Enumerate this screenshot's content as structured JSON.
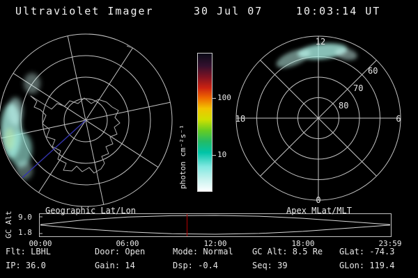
{
  "title": {
    "instrument": "Ultraviolet Imager",
    "date": "30 Jul 07",
    "time": "10:03:14 UT"
  },
  "colors": {
    "background": "#000000",
    "text": "#e8e8e8",
    "grid": "#c4c4c4",
    "emission_cyan": "#a9efe3",
    "orbit_track_blue": "#3434ad",
    "time_marker_red": "#b40000"
  },
  "left_plot": {
    "caption": "Geographic Lat/Lon"
  },
  "right_plot": {
    "caption": "Apex MLat/MLT",
    "mlt_top": "12",
    "mlt_left": "18",
    "mlt_right": "6",
    "mlt_bottom": "0",
    "lat_rings": [
      "60",
      "70",
      "80"
    ]
  },
  "colorbar": {
    "label": "photon cm⁻²s⁻¹",
    "scale": "log",
    "ticks": [
      {
        "value": "100",
        "pos": 0.33
      },
      {
        "value": "10",
        "pos": 0.74
      }
    ],
    "stops": [
      [
        0.0,
        "#0a0a16"
      ],
      [
        0.09,
        "#33102e"
      ],
      [
        0.17,
        "#7f1222"
      ],
      [
        0.25,
        "#cc2211"
      ],
      [
        0.32,
        "#ee6600"
      ],
      [
        0.4,
        "#f2c400"
      ],
      [
        0.48,
        "#cfe000"
      ],
      [
        0.56,
        "#66cc22"
      ],
      [
        0.64,
        "#22bb66"
      ],
      [
        0.72,
        "#00c4a8"
      ],
      [
        0.82,
        "#7fe8e0"
      ],
      [
        0.91,
        "#c5f2ee"
      ],
      [
        1.0,
        "#fcffff"
      ]
    ]
  },
  "strip_chart": {
    "ylabel": "GC Alt",
    "ytick_top": "9.0",
    "ytick_bottom": "1.8",
    "xticks": [
      "00:00",
      "06:00",
      "12:00",
      "18:00",
      "23:59"
    ]
  },
  "status": {
    "row1": [
      "Flt: LBHL",
      "Door: Open",
      "Mode: Normal",
      "GC Alt: 8.5 Re",
      "GLat: -74.3"
    ],
    "row2": [
      "IP: 36.0",
      "Gain: 14",
      "Dsp: -0.4",
      "Seq: 39",
      "GLon: 119.4"
    ]
  },
  "chart_data": [
    {
      "type": "heatmap",
      "title": "Geographic Lat/Lon",
      "description": "Polar UV image of the southern polar region; diffuse auroral emission (~5-30 photon cm-2 s-1, pale cyan) along the left (dawn-side) limb of the disk; Antarctic coastline overlaid in gray; geographic grid of concentric latitude circles with meridian spokes every 45 deg; dark blue orbit/terminator line from image center toward lower left",
      "units": "photon cm⁻²s⁻¹",
      "scale": "log",
      "color_range": [
        1,
        1000
      ]
    },
    {
      "type": "heatmap",
      "title": "Apex MLat/MLT",
      "description": "Same UV image mapped into Apex magnetic latitude / magnetic local time; emission arc near magnetic noon (about 09-15 MLT) between roughly 60 and 75 MLat at ~5-30 photon cm-2 s-1",
      "rings_mlat": [
        60,
        70,
        80
      ],
      "mlt_axis_labels": [
        12,
        18,
        6,
        0
      ],
      "units": "photon cm⁻²s⁻¹"
    },
    {
      "type": "line",
      "title": "GC Alt vs UT",
      "ylabel": "GC Alt",
      "ylim": [
        1.8,
        9.0
      ],
      "xlim_labels": [
        "00:00",
        "23:59"
      ],
      "x": [
        0,
        3,
        6,
        9,
        12,
        15,
        18,
        21,
        23.98
      ],
      "series": [
        {
          "name": "upper envelope (Re)",
          "values": [
            5.5,
            7.3,
            8.4,
            8.9,
            9.0,
            8.7,
            7.9,
            6.7,
            5.5
          ]
        },
        {
          "name": "lower envelope (Re)",
          "values": [
            5.3,
            3.8,
            2.7,
            2.0,
            1.8,
            2.1,
            2.9,
            4.1,
            5.3
          ]
        }
      ],
      "current_time_hours": 10.054,
      "current_gc_alt_re": 8.5
    }
  ]
}
